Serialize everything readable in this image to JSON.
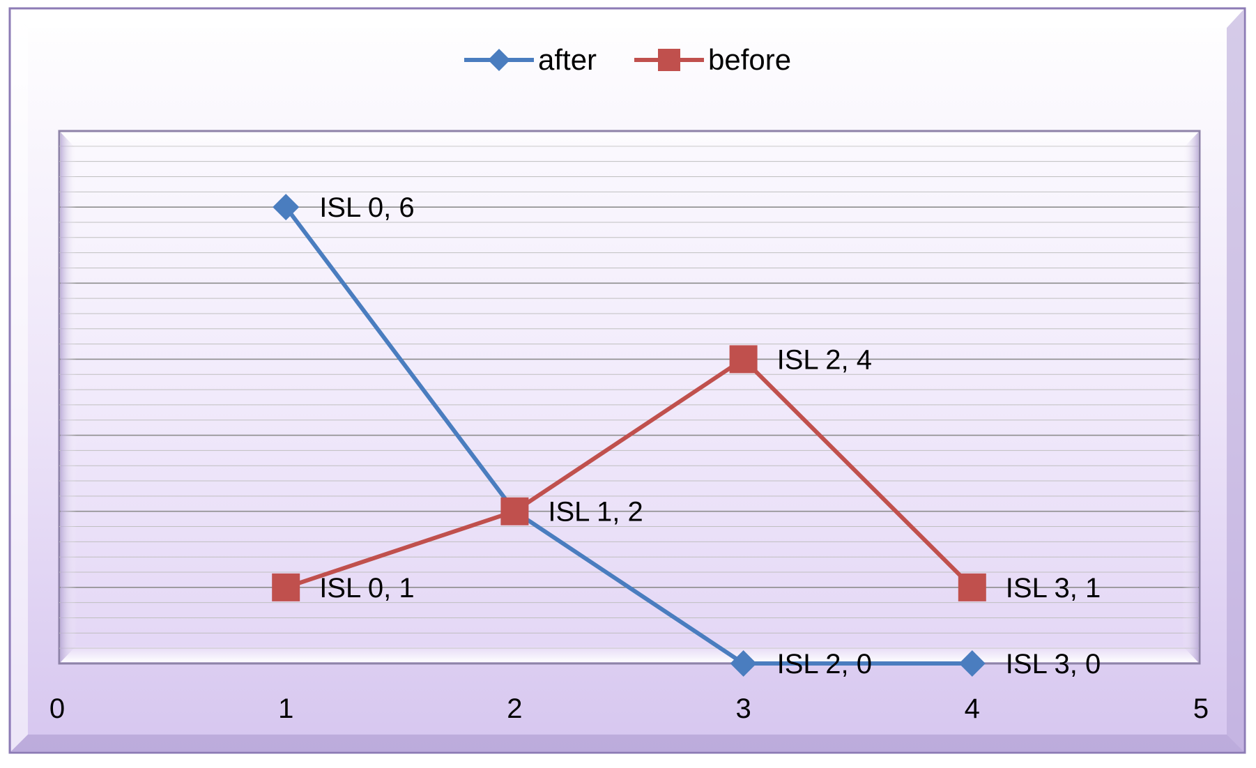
{
  "chart_data": {
    "type": "line",
    "title": "",
    "xlabel": "",
    "ylabel": "",
    "xlim": [
      0,
      5
    ],
    "ylim": [
      0,
      7
    ],
    "x_ticks": [
      "0",
      "1",
      "2",
      "3",
      "4",
      "5"
    ],
    "grid": true,
    "legend_position": "top-center",
    "series": [
      {
        "name": "after",
        "color": "#4a7dbf",
        "marker": "diamond",
        "points": [
          {
            "x": 1,
            "y": 6,
            "label": "ISL 0, 6"
          },
          {
            "x": 2,
            "y": 2,
            "label": ""
          },
          {
            "x": 3,
            "y": 0,
            "label": "ISL 2, 0"
          },
          {
            "x": 4,
            "y": 0,
            "label": "ISL 3, 0"
          }
        ]
      },
      {
        "name": "before",
        "color": "#c0504d",
        "marker": "square",
        "points": [
          {
            "x": 1,
            "y": 1,
            "label": "ISL 0, 1"
          },
          {
            "x": 2,
            "y": 2,
            "label": "ISL 1, 2"
          },
          {
            "x": 3,
            "y": 4,
            "label": "ISL 2, 4"
          },
          {
            "x": 4,
            "y": 1,
            "label": "ISL 3, 1"
          }
        ]
      }
    ]
  }
}
